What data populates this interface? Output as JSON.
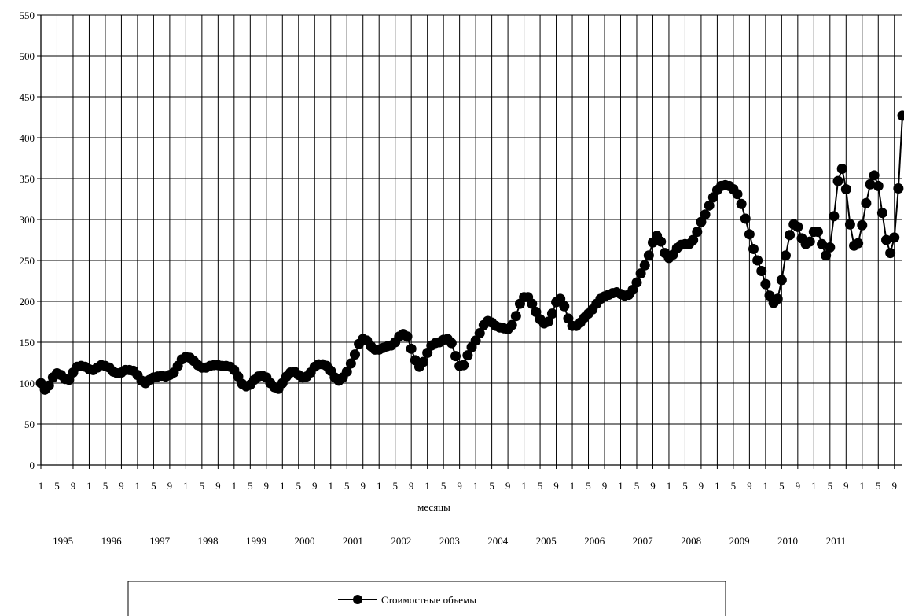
{
  "chart_data": {
    "type": "line",
    "xlabel": "месяцы",
    "ylim": [
      0,
      550
    ],
    "y_ticks": [
      "0",
      "50",
      "100",
      "150",
      "200",
      "250",
      "300",
      "350",
      "400",
      "450",
      "500",
      "550"
    ],
    "month_tick_labels": [
      "1",
      "5",
      "9"
    ],
    "years": [
      "1995",
      "1996",
      "1997",
      "1998",
      "1999",
      "2000",
      "2001",
      "2002",
      "2003",
      "2004",
      "2005",
      "2006",
      "2007",
      "2008",
      "2009",
      "2010",
      "2011"
    ],
    "grid": true,
    "legend_position": "bottom",
    "marker": "circle",
    "line_color": "#000000",
    "series": [
      {
        "name": "Стоимостные объемы",
        "values": [
          100,
          92,
          97,
          107,
          112,
          110,
          105,
          104,
          113,
          120,
          121,
          120,
          117,
          116,
          119,
          122,
          121,
          119,
          114,
          112,
          113,
          116,
          116,
          115,
          110,
          103,
          100,
          104,
          107,
          108,
          109,
          108,
          110,
          113,
          121,
          129,
          132,
          131,
          127,
          122,
          119,
          119,
          121,
          122,
          122,
          121,
          121,
          120,
          116,
          108,
          99,
          96,
          98,
          104,
          108,
          109,
          107,
          100,
          95,
          93,
          100,
          108,
          113,
          114,
          110,
          107,
          108,
          113,
          120,
          123,
          123,
          121,
          115,
          107,
          103,
          107,
          114,
          124,
          135,
          148,
          154,
          152,
          145,
          141,
          141,
          143,
          145,
          146,
          150,
          157,
          160,
          157,
          142,
          128,
          120,
          126,
          137,
          146,
          149,
          150,
          153,
          154,
          149,
          133,
          121,
          122,
          134,
          144,
          152,
          161,
          171,
          176,
          174,
          170,
          168,
          167,
          166,
          171,
          182,
          197,
          205,
          205,
          197,
          187,
          178,
          173,
          175,
          185,
          199,
          203,
          194,
          179,
          170,
          170,
          174,
          180,
          185,
          190,
          197,
          203,
          206,
          208,
          210,
          211,
          209,
          207,
          208,
          214,
          223,
          234,
          244,
          256,
          272,
          280,
          273,
          259,
          253,
          257,
          265,
          269,
          270,
          270,
          275,
          285,
          297,
          306,
          317,
          327,
          336,
          341,
          342,
          341,
          337,
          331,
          319,
          301,
          282,
          264,
          250,
          237,
          221,
          207,
          198,
          203,
          226,
          256,
          281,
          294,
          291,
          277,
          270,
          273,
          285,
          285,
          270,
          256,
          266,
          304,
          347,
          362,
          337,
          294,
          268,
          271,
          293,
          320,
          343,
          354,
          341,
          308,
          275,
          259,
          278,
          338,
          427
        ]
      }
    ]
  }
}
